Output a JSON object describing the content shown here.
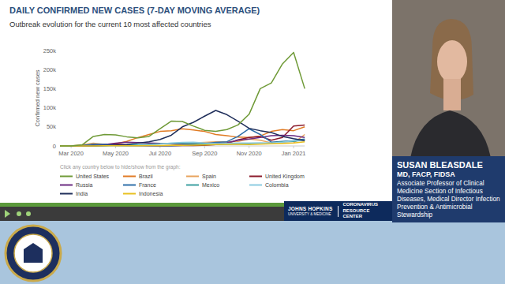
{
  "chart_data": {
    "type": "line",
    "title": "DAILY CONFIRMED NEW CASES (7-DAY MOVING AVERAGE)",
    "subtitle": "Outbreak evolution for the current 10 most affected countries",
    "y_label": "Confirmed new cases",
    "annotations": [
      "Click any country below to hide/show from the graph:"
    ],
    "categories": [
      null,
      "Mar 2020",
      null,
      null,
      null,
      "May 2020",
      null,
      null,
      null,
      "Jul 2020",
      null,
      null,
      null,
      "Sep 2020",
      null,
      null,
      null,
      "Nov 2020",
      null,
      null,
      null,
      "Jan 2021",
      null
    ],
    "ylim": [
      0,
      250000
    ],
    "yticks": [
      0,
      {
        "value": 50000,
        "label": "50k"
      },
      {
        "value": 100000,
        "label": "100k"
      },
      {
        "value": 150000,
        "label": "150k"
      },
      {
        "value": 200000,
        "label": "200k"
      },
      {
        "value": 250000,
        "label": "250k"
      }
    ],
    "grid": false,
    "legend": "bottom",
    "series": [
      {
        "name": "United States",
        "color": "#6f9a37",
        "values": [
          0,
          0,
          3000,
          25000,
          30000,
          29000,
          24000,
          21000,
          25000,
          45000,
          65000,
          64000,
          52000,
          41000,
          38000,
          43000,
          55000,
          83000,
          150000,
          165000,
          215000,
          245000,
          150000
        ]
      },
      {
        "name": "Brazil",
        "color": "#e07b24",
        "values": [
          0,
          0,
          0,
          1000,
          2500,
          5500,
          12000,
          22000,
          30000,
          38000,
          40000,
          45000,
          42000,
          38000,
          30000,
          27000,
          23000,
          22000,
          26000,
          38000,
          43000,
          40000,
          50000
        ]
      },
      {
        "name": "Spain",
        "color": "#e8a35c",
        "values": [
          0,
          0,
          3000,
          7000,
          4000,
          1500,
          500,
          300,
          400,
          600,
          1500,
          4000,
          7000,
          9500,
          11000,
          11000,
          12000,
          18000,
          15000,
          8000,
          7000,
          8000,
          30000
        ]
      },
      {
        "name": "United Kingdom",
        "color": "#8b1a2b",
        "values": [
          0,
          0,
          500,
          3500,
          4700,
          4500,
          3000,
          2000,
          1200,
          700,
          650,
          800,
          1100,
          1500,
          3500,
          6000,
          16000,
          22000,
          25000,
          15000,
          22000,
          52000,
          55000
        ]
      },
      {
        "name": "Russia",
        "color": "#6b2a80",
        "values": [
          0,
          0,
          0,
          500,
          3500,
          7000,
          10000,
          9000,
          8000,
          6500,
          6000,
          5300,
          5000,
          5000,
          6000,
          8500,
          15000,
          18000,
          22000,
          27000,
          28000,
          27000,
          22000
        ]
      },
      {
        "name": "France",
        "color": "#2f6fa8",
        "values": [
          0,
          0,
          1000,
          4500,
          4000,
          1000,
          500,
          400,
          500,
          500,
          700,
          1500,
          3500,
          6000,
          9500,
          11000,
          25000,
          45000,
          30000,
          10000,
          12000,
          14000,
          18000
        ]
      },
      {
        "name": "Mexico",
        "color": "#3d9fa0",
        "values": [
          0,
          0,
          0,
          200,
          600,
          1300,
          2000,
          3000,
          4500,
          5500,
          6500,
          6500,
          6000,
          5000,
          4500,
          4500,
          5000,
          5500,
          6000,
          8000,
          11000,
          12000,
          16000
        ]
      },
      {
        "name": "Colombia",
        "color": "#8ccbe0",
        "values": [
          0,
          0,
          0,
          100,
          200,
          300,
          500,
          1000,
          2500,
          4500,
          7500,
          9500,
          10000,
          8000,
          6000,
          6500,
          7500,
          8000,
          8500,
          8000,
          10000,
          14000,
          15000
        ]
      },
      {
        "name": "India",
        "color": "#1f2e5a",
        "values": [
          0,
          0,
          0,
          200,
          1000,
          2000,
          3500,
          7500,
          11000,
          17000,
          28000,
          50000,
          62000,
          78000,
          93000,
          82000,
          65000,
          46000,
          40000,
          35000,
          25000,
          19000,
          14000
        ]
      },
      {
        "name": "Indonesia",
        "color": "#e8c020",
        "values": [
          0,
          0,
          0,
          100,
          300,
          300,
          500,
          600,
          900,
          1200,
          1500,
          1800,
          2100,
          2800,
          3800,
          4200,
          4000,
          3500,
          4500,
          5500,
          6500,
          8000,
          11000
        ]
      }
    ]
  },
  "speaker": {
    "name": "SUSAN BLEASDALE",
    "credentials": "MD, FACP, FIDSA",
    "role": "Associate Professor of Clinical Medicine Section of Infectious Diseases, Medical Director Infection Prevention & Antimicrobial Stewardship"
  },
  "banner": {
    "institution": "JOHNS HOPKINS",
    "institution_sub": "UNIVERSITY & MEDICINE",
    "center": "CORONAVIRUS RESOURCE CENTER"
  }
}
